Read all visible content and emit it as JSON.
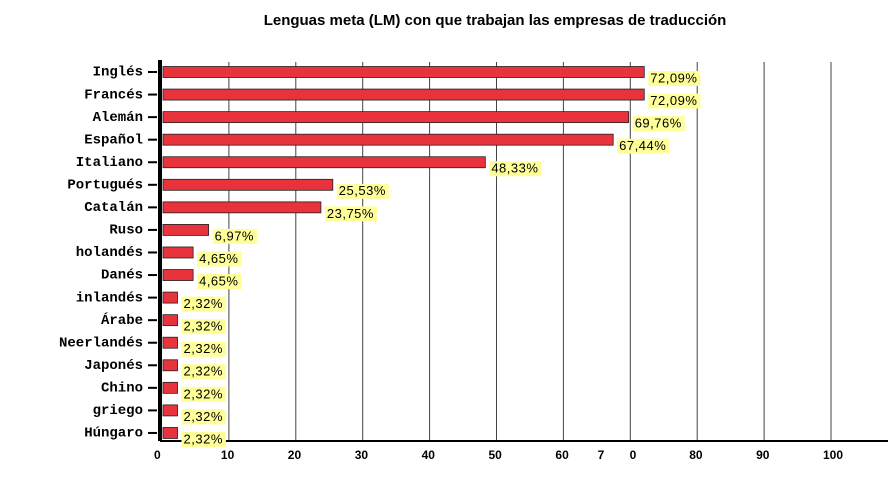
{
  "chart_data": {
    "type": "bar",
    "orientation": "horizontal",
    "title": "Lenguas meta (LM)  con que trabajan las empresas de traducción",
    "categories": [
      "Inglés",
      "Francés",
      "Alemán",
      "Español",
      "Italiano",
      "Portugués",
      "Catalán",
      "Ruso",
      "holandés",
      "Danés",
      "inlandés",
      "Árabe",
      "Neerlandés",
      "Japonés",
      "Chino",
      "griego",
      "Húngaro"
    ],
    "values": [
      72.09,
      72.09,
      69.76,
      67.44,
      48.33,
      25.53,
      23.75,
      6.97,
      4.65,
      4.65,
      2.32,
      2.32,
      2.32,
      2.32,
      2.32,
      2.32,
      2.32
    ],
    "value_labels": [
      "72,09%",
      "72,09%",
      "69,76%",
      "67,44%",
      "48,33%",
      "25,53%",
      "23,75%",
      "6,97%",
      "4,65%",
      "4,65%",
      "2,32%",
      "2,32%",
      "2,32%",
      "2,32%",
      "2,32%",
      "2,32%",
      "2,32%"
    ],
    "color": "#e8333c",
    "label_background": "#ffff99",
    "xlim": [
      0,
      100
    ],
    "xticks": [
      0,
      10,
      20,
      30,
      40,
      50,
      60,
      {
        "value": 70,
        "label": "7 0"
      },
      80,
      90,
      100
    ],
    "grid": true
  }
}
